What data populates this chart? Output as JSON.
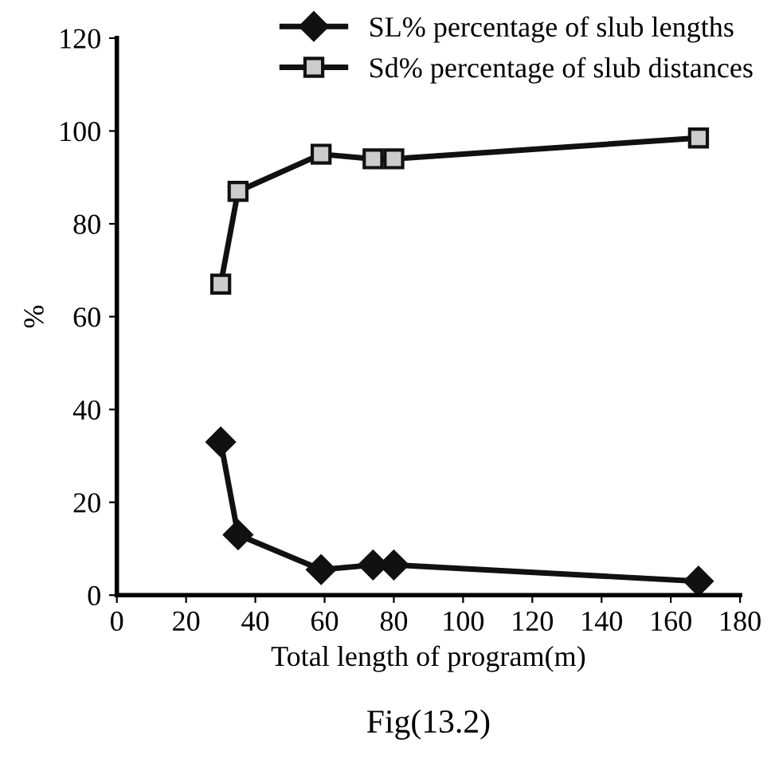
{
  "chart_data": {
    "type": "line",
    "xlabel": "Total length of program(m)",
    "ylabel": "%",
    "annotations": [
      "Fig(13.2)"
    ],
    "x": [
      30,
      35,
      59,
      74,
      80,
      168
    ],
    "series": [
      {
        "name": "SL% percentage of slub lengths",
        "color": "#111111",
        "values": [
          33,
          13,
          5.5,
          6.5,
          6.5,
          3
        ],
        "marker": "diamond"
      },
      {
        "name": "Sd% percentage of slub distances",
        "color": "#111111",
        "values": [
          67,
          87,
          95,
          94,
          94,
          98.5
        ],
        "marker": "square"
      }
    ],
    "xlim": [
      0,
      180
    ],
    "xticks": [
      0,
      20,
      40,
      60,
      80,
      100,
      120,
      140,
      160,
      180
    ],
    "ylim": [
      0,
      120
    ],
    "yticks": [
      0,
      20,
      40,
      60,
      80,
      100,
      120
    ],
    "grid": false,
    "legend": "top right",
    "line_style": "solid"
  }
}
